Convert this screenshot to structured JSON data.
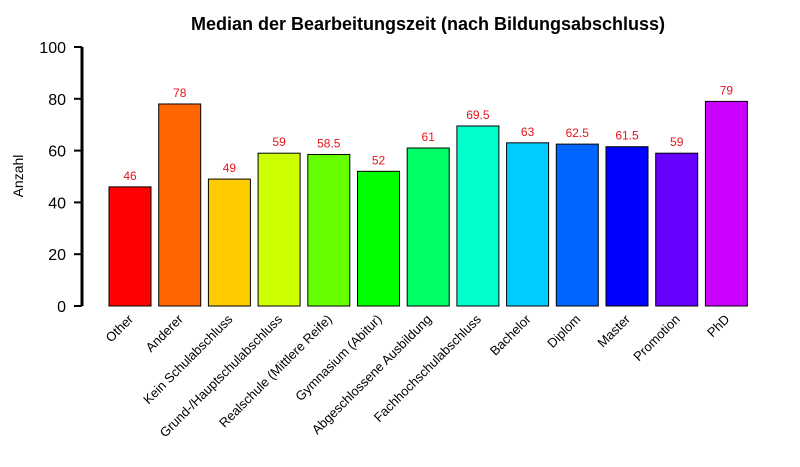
{
  "chart_data": {
    "type": "bar",
    "title": "Median der Bearbeitungszeit (nach Bildungsabschluss)",
    "ylabel": "Anzahl",
    "xlabel": "",
    "ylim": [
      0,
      100
    ],
    "yticks": [
      "0",
      "20",
      "40",
      "60",
      "80",
      "100"
    ],
    "categories": [
      "Other",
      "Anderer",
      "Kein Schulabschluss",
      "Grund-/Hauptschulabschluss",
      "Realschule (Mittlere Reife)",
      "Gymnasium (Abitur)",
      "Abgeschlossene Ausbildung",
      "Fachhochschulabschluss",
      "Bachelor",
      "Diplom",
      "Master",
      "Promotion",
      "PhD"
    ],
    "values": [
      46,
      78,
      49,
      59,
      58.5,
      52,
      61,
      69.5,
      63,
      62.5,
      61.5,
      59,
      79
    ],
    "value_labels": [
      "46",
      "78",
      "49",
      "59",
      "58.5",
      "52",
      "61",
      "69.5",
      "63",
      "62.5",
      "61.5",
      "59",
      "79"
    ],
    "colors": [
      "#ff0000",
      "#ff6600",
      "#ffcc00",
      "#ccff00",
      "#66ff00",
      "#00ff00",
      "#00ff66",
      "#00ffcc",
      "#00ccff",
      "#0066ff",
      "#0000ff",
      "#6600ff",
      "#cc00ff"
    ],
    "value_label_color": "#e8141c",
    "grid": false,
    "legend": "none"
  }
}
